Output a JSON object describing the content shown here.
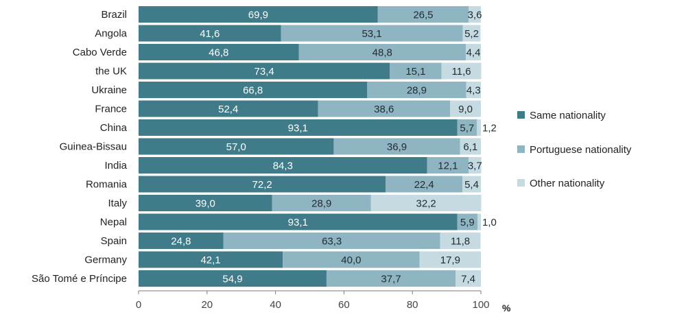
{
  "chart_data": {
    "type": "bar",
    "orientation": "horizontal",
    "stacked": true,
    "categories": [
      "Brazil",
      "Angola",
      "Cabo Verde",
      "the UK",
      "Ukraine",
      "France",
      "China",
      "Guinea-Bissau",
      "India",
      "Romania",
      "Italy",
      "Nepal",
      "Spain",
      "Germany",
      "São Tomé e Príncipe"
    ],
    "series": [
      {
        "name": "Same nationality",
        "color": "#3f7b88",
        "values": [
          69.9,
          41.6,
          46.8,
          73.4,
          66.8,
          52.4,
          93.1,
          57.0,
          84.3,
          72.2,
          39.0,
          93.1,
          24.8,
          42.1,
          54.9
        ],
        "labels": [
          "69,9",
          "41,6",
          "46,8",
          "73,4",
          "66,8",
          "52,4",
          "93,1",
          "57,0",
          "84,3",
          "72,2",
          "39,0",
          "93,1",
          "24,8",
          "42,1",
          "54,9"
        ]
      },
      {
        "name": "Portuguese nationality",
        "color": "#8fb5c3",
        "values": [
          26.5,
          53.1,
          48.8,
          15.1,
          28.9,
          38.6,
          5.7,
          36.9,
          12.1,
          22.4,
          28.9,
          5.9,
          63.3,
          40.0,
          37.7
        ],
        "labels": [
          "26,5",
          "53,1",
          "48,8",
          "15,1",
          "28,9",
          "38,6",
          "5,7",
          "36,9",
          "12,1",
          "22,4",
          "28,9",
          "5,9",
          "63,3",
          "40,0",
          "37,7"
        ]
      },
      {
        "name": "Other nationality",
        "color": "#c5dbe1",
        "values": [
          3.6,
          5.2,
          4.4,
          11.6,
          4.3,
          9.0,
          1.2,
          6.1,
          3.7,
          5.4,
          32.2,
          1.0,
          11.8,
          17.9,
          7.4
        ],
        "labels": [
          "3,6",
          "5,2",
          "4,4",
          "11,6",
          "4,3",
          "9,0",
          "1,2",
          "6,1",
          "3,7",
          "5,4",
          "32,2",
          "1,0",
          "11,8",
          "17,9",
          "7,4"
        ]
      }
    ],
    "xlim": [
      0,
      100
    ],
    "xticks": [
      0,
      20,
      40,
      60,
      80,
      100
    ],
    "xtick_labels": [
      "0",
      "20",
      "40",
      "60",
      "80",
      "100"
    ],
    "x_unit": "%",
    "grid": false,
    "legend_position": "right"
  }
}
